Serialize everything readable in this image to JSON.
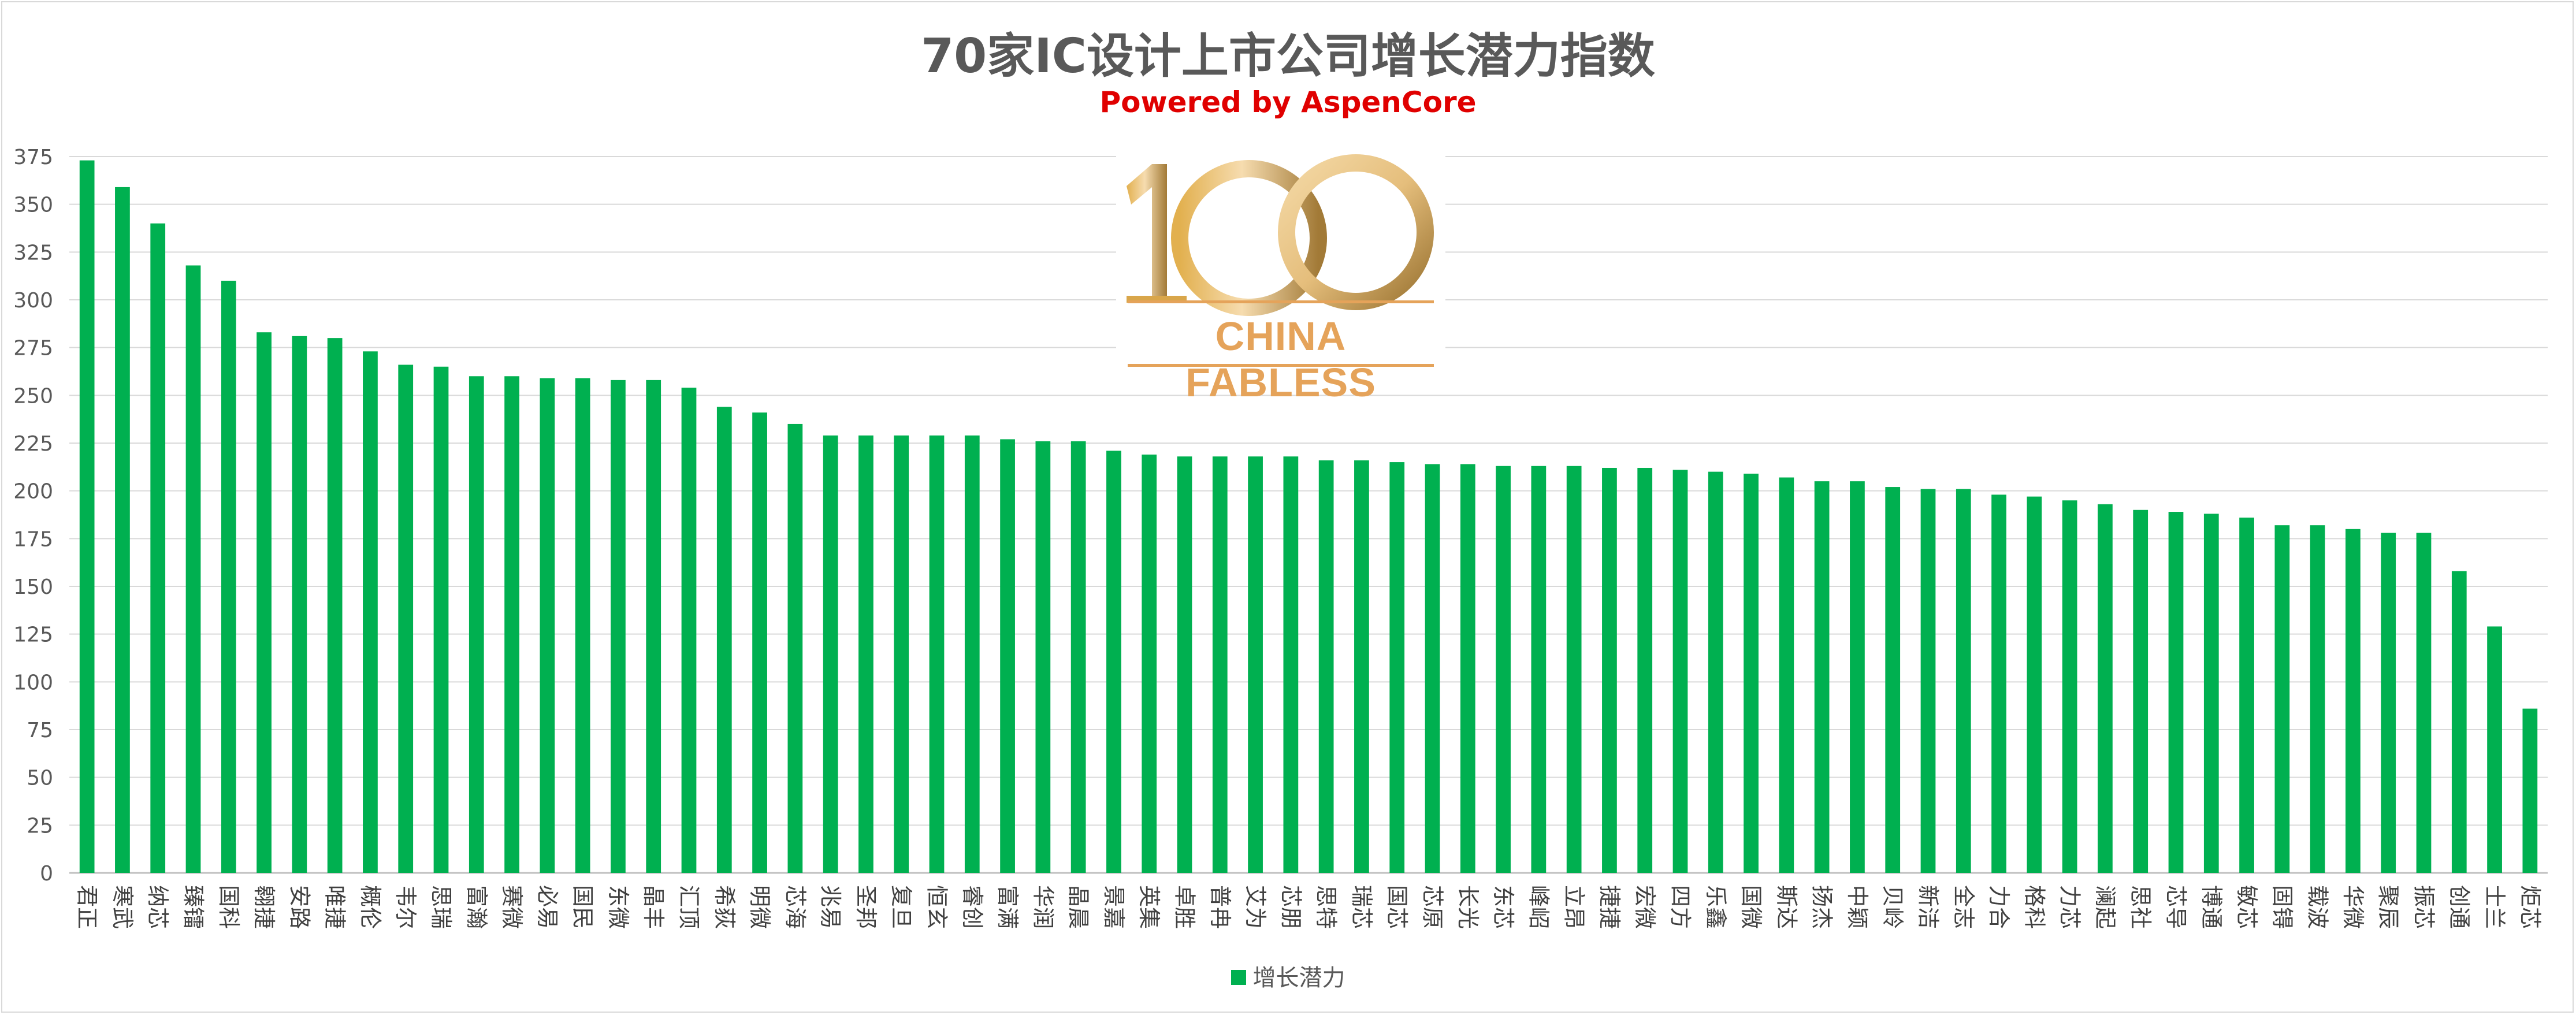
{
  "chart_data": {
    "type": "bar",
    "title": "70家IC设计上市公司增长潜力指数",
    "subtitle": "Powered by AspenCore",
    "xlabel": "",
    "ylabel": "",
    "ylim": [
      0,
      375
    ],
    "yticks": [
      "0",
      "25",
      "50",
      "75",
      "100",
      "125",
      "150",
      "175",
      "200",
      "225",
      "250",
      "275",
      "300",
      "325",
      "350",
      "375"
    ],
    "grid": true,
    "legend_position": "bottom",
    "categories": [
      "君正",
      "寒武",
      "纳芯",
      "臻镭",
      "国科",
      "翱捷",
      "安路",
      "唯捷",
      "概伦",
      "韦尔",
      "思瑞",
      "富瀚",
      "赛微",
      "必易",
      "国民",
      "东微",
      "晶丰",
      "汇顶",
      "希荻",
      "明微",
      "芯海",
      "兆易",
      "圣邦",
      "复旦",
      "恒玄",
      "睿创",
      "富满",
      "华润",
      "晶晨",
      "景嘉",
      "英集",
      "卓胜",
      "普冉",
      "艾为",
      "芯朋",
      "思特",
      "瑞芯",
      "国芯",
      "芯原",
      "长光",
      "东芯",
      "峰岹",
      "立昂",
      "捷捷",
      "宏微",
      "四方",
      "乐鑫",
      "国微",
      "斯达",
      "扬杰",
      "中颖",
      "贝岭",
      "新洁",
      "全志",
      "力合",
      "格科",
      "力芯",
      "澜起",
      "思社",
      "芯导",
      "博通",
      "敏芯",
      "固锝",
      "载波",
      "华微",
      "聚辰",
      "振芯",
      "创通",
      "士兰",
      "炬芯"
    ],
    "series": [
      {
        "name": "增长潜力",
        "color": "#00b050",
        "values": [
          373,
          359,
          340,
          318,
          310,
          283,
          281,
          280,
          273,
          266,
          265,
          260,
          260,
          259,
          259,
          258,
          258,
          254,
          244,
          241,
          235,
          229,
          229,
          229,
          229,
          229,
          227,
          226,
          226,
          221,
          219,
          218,
          218,
          218,
          218,
          216,
          216,
          215,
          214,
          214,
          213,
          213,
          213,
          212,
          212,
          211,
          210,
          209,
          207,
          205,
          205,
          202,
          201,
          201,
          198,
          197,
          195,
          193,
          190,
          189,
          188,
          186,
          182,
          182,
          180,
          178,
          178,
          158,
          129,
          86
        ]
      }
    ]
  },
  "logo": {
    "number": "100",
    "text": "CHINA FABLESS"
  }
}
